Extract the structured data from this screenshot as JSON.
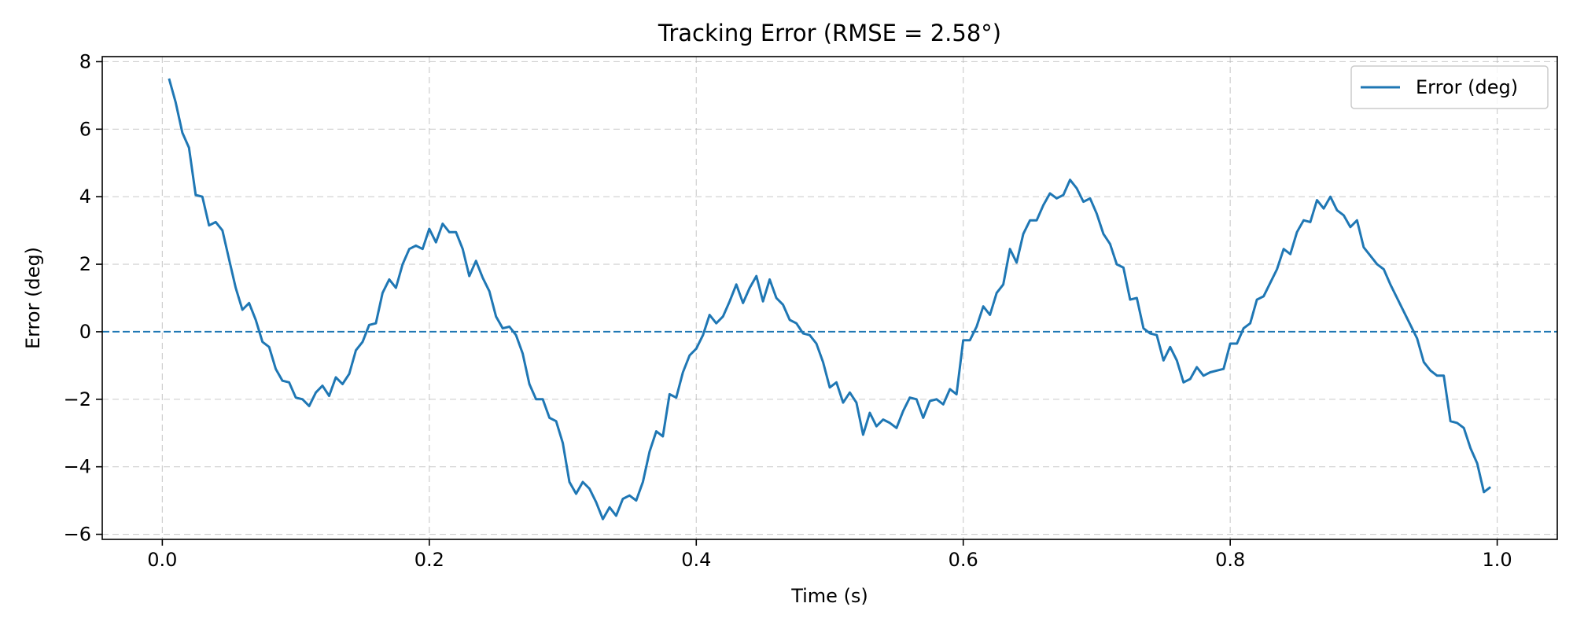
{
  "chart_data": {
    "type": "line",
    "title": "Tracking Error (RMSE = 2.58°)",
    "xlabel": "Time (s)",
    "ylabel": "Error (deg)",
    "xlim": [
      -0.045,
      1.045
    ],
    "ylim": [
      -6.15,
      8.15
    ],
    "xticks": [
      0.0,
      0.2,
      0.4,
      0.6,
      0.8,
      1.0
    ],
    "xtick_labels": [
      "0.0",
      "0.2",
      "0.4",
      "0.6",
      "0.8",
      "1.0"
    ],
    "yticks": [
      -6,
      -4,
      -2,
      0,
      2,
      4,
      6,
      8
    ],
    "ytick_labels": [
      "−6",
      "−4",
      "−2",
      "0",
      "2",
      "4",
      "6",
      "8"
    ],
    "grid": true,
    "legend_position": "top-right",
    "reference_line": {
      "y": 0,
      "style": "dashed",
      "color": "#1f77b4"
    },
    "series": [
      {
        "name": "Error (deg)",
        "color": "#1f77b4",
        "x": [
          0.005,
          0.01,
          0.015,
          0.02,
          0.025,
          0.03,
          0.035,
          0.04,
          0.045,
          0.05,
          0.055,
          0.06,
          0.065,
          0.07,
          0.075,
          0.08,
          0.085,
          0.09,
          0.095,
          0.1,
          0.105,
          0.11,
          0.115,
          0.12,
          0.125,
          0.13,
          0.135,
          0.14,
          0.145,
          0.15,
          0.155,
          0.16,
          0.165,
          0.17,
          0.175,
          0.18,
          0.185,
          0.19,
          0.195,
          0.2,
          0.205,
          0.21,
          0.215,
          0.22,
          0.225,
          0.23,
          0.235,
          0.24,
          0.245,
          0.25,
          0.255,
          0.26,
          0.265,
          0.27,
          0.275,
          0.28,
          0.285,
          0.29,
          0.295,
          0.3,
          0.305,
          0.31,
          0.315,
          0.32,
          0.325,
          0.33,
          0.335,
          0.34,
          0.345,
          0.35,
          0.355,
          0.36,
          0.365,
          0.37,
          0.375,
          0.38,
          0.385,
          0.39,
          0.395,
          0.4,
          0.405,
          0.41,
          0.415,
          0.42,
          0.425,
          0.43,
          0.435,
          0.44,
          0.445,
          0.45,
          0.455,
          0.46,
          0.465,
          0.47,
          0.475,
          0.48,
          0.485,
          0.49,
          0.495,
          0.5,
          0.505,
          0.51,
          0.515,
          0.52,
          0.525,
          0.53,
          0.535,
          0.54,
          0.545,
          0.55,
          0.555,
          0.56,
          0.565,
          0.57,
          0.575,
          0.58,
          0.585,
          0.59,
          0.595,
          0.6,
          0.605,
          0.61,
          0.615,
          0.62,
          0.625,
          0.63,
          0.635,
          0.64,
          0.645,
          0.65,
          0.655,
          0.66,
          0.665,
          0.67,
          0.675,
          0.68,
          0.685,
          0.69,
          0.695,
          0.7,
          0.705,
          0.71,
          0.715,
          0.72,
          0.725,
          0.73,
          0.735,
          0.74,
          0.745,
          0.75,
          0.755,
          0.76,
          0.765,
          0.77,
          0.775,
          0.78,
          0.785,
          0.79,
          0.795,
          0.8,
          0.805,
          0.81,
          0.815,
          0.82,
          0.825,
          0.83,
          0.835,
          0.84,
          0.845,
          0.85,
          0.855,
          0.86,
          0.865,
          0.87,
          0.875,
          0.88,
          0.885,
          0.89,
          0.895,
          0.9,
          0.905,
          0.91,
          0.915,
          0.92,
          0.925,
          0.93,
          0.935,
          0.94,
          0.945,
          0.95,
          0.955,
          0.96,
          0.965,
          0.97,
          0.975,
          0.98,
          0.985,
          0.99,
          0.995
        ],
        "values": [
          7.5,
          6.8,
          5.9,
          5.45,
          4.05,
          4.0,
          3.15,
          3.25,
          3.0,
          2.15,
          1.3,
          0.65,
          0.85,
          0.35,
          -0.3,
          -0.45,
          -1.1,
          -1.45,
          -1.5,
          -1.95,
          -2.0,
          -2.2,
          -1.8,
          -1.6,
          -1.9,
          -1.35,
          -1.55,
          -1.25,
          -0.55,
          -0.3,
          0.2,
          0.25,
          1.15,
          1.55,
          1.3,
          2.0,
          2.45,
          2.55,
          2.45,
          3.05,
          2.65,
          3.2,
          2.95,
          2.95,
          2.45,
          1.65,
          2.1,
          1.6,
          1.2,
          0.45,
          0.1,
          0.15,
          -0.1,
          -0.65,
          -1.55,
          -2.0,
          -2.0,
          -2.55,
          -2.65,
          -3.3,
          -4.45,
          -4.8,
          -4.45,
          -4.65,
          -5.05,
          -5.55,
          -5.2,
          -5.45,
          -4.95,
          -4.85,
          -5.0,
          -4.45,
          -3.55,
          -2.95,
          -3.1,
          -1.85,
          -1.95,
          -1.2,
          -0.7,
          -0.5,
          -0.1,
          0.5,
          0.25,
          0.45,
          0.9,
          1.4,
          0.85,
          1.3,
          1.65,
          0.9,
          1.55,
          1.0,
          0.8,
          0.35,
          0.25,
          -0.05,
          -0.1,
          -0.35,
          -0.9,
          -1.65,
          -1.5,
          -2.1,
          -1.8,
          -2.1,
          -3.05,
          -2.4,
          -2.8,
          -2.6,
          -2.7,
          -2.85,
          -2.35,
          -1.95,
          -2.0,
          -2.55,
          -2.05,
          -2.0,
          -2.15,
          -1.7,
          -1.85,
          -0.25,
          -0.25,
          0.15,
          0.75,
          0.5,
          1.15,
          1.4,
          2.45,
          2.05,
          2.9,
          3.3,
          3.3,
          3.75,
          4.1,
          3.95,
          4.05,
          4.5,
          4.25,
          3.85,
          3.95,
          3.5,
          2.9,
          2.6,
          2.0,
          1.9,
          0.95,
          1.0,
          0.1,
          -0.05,
          -0.1,
          -0.85,
          -0.45,
          -0.85,
          -1.5,
          -1.4,
          -1.05,
          -1.3,
          -1.2,
          -1.15,
          -1.1,
          -0.35,
          -0.35,
          0.1,
          0.25,
          0.95,
          1.05,
          1.45,
          1.85,
          2.45,
          2.3,
          2.95,
          3.3,
          3.25,
          3.9,
          3.65,
          4.0,
          3.6,
          3.45,
          3.1,
          3.3,
          2.5,
          2.25,
          2.0,
          1.85,
          1.4,
          1.0,
          0.6,
          0.2,
          -0.2,
          -0.9,
          -1.15,
          -1.3,
          -1.3,
          -2.65,
          -2.7,
          -2.85,
          -3.45,
          -3.9,
          -4.75,
          -4.6
        ]
      }
    ]
  }
}
